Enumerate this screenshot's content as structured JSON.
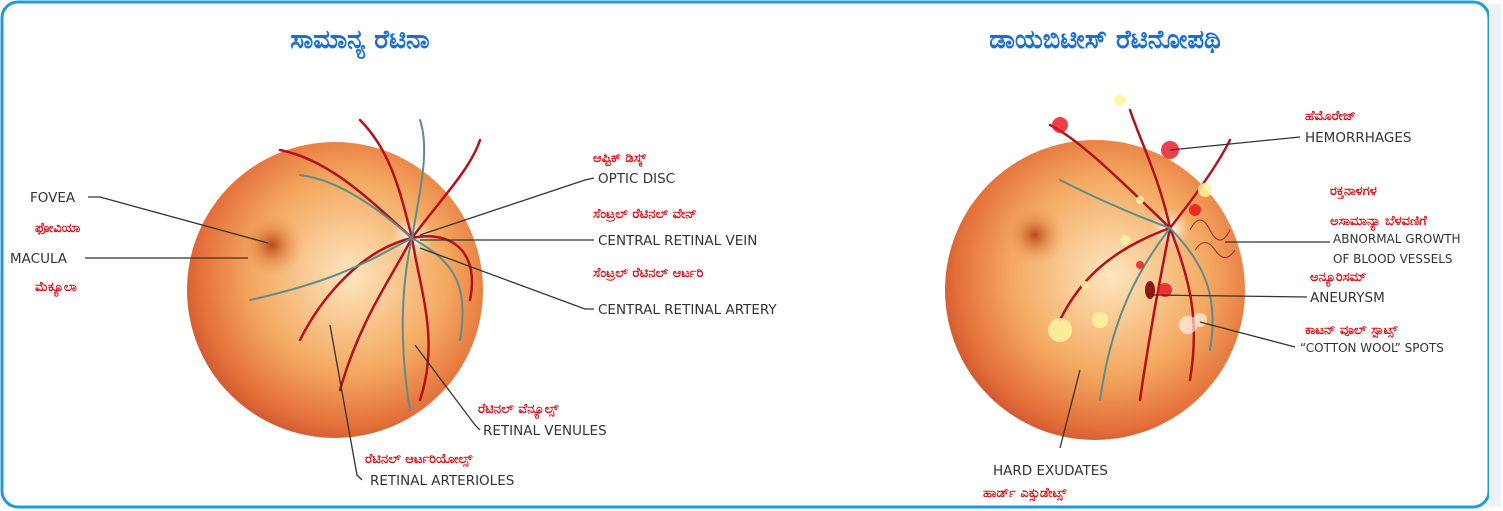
{
  "normal": {
    "title": "ಸಾಮಾನ್ಯ ರೆಟಿನಾ",
    "labels": [
      {
        "english": "FOVEA",
        "kannada": "ಫೋವಿಯಾ"
      },
      {
        "english": "MACULA",
        "kannada": "ಮೆಕ್ಯೂಲಾ"
      },
      {
        "english": "OPTIC DISC",
        "kannada": "ಆಪ್ಟಿಕ್ ಡಿಸ್ಕ್"
      },
      {
        "english": "CENTRAL RETINAL VEIN",
        "kannada": "ಸೆಂಟ್ರಲ್ ರೆಟಿನಲ್ ವೇನ್"
      },
      {
        "english": "CENTRAL RETINAL ARTERY",
        "kannada": "ಸೆಂಟ್ರಲ್ ರೆಟಿನಲ್ ಆರ್ಟರಿ"
      },
      {
        "english": "RETINAL VENULES",
        "kannada": "ರೆಟಿನಲ್ ವೆನ್ಯೂಲ್ಸ್"
      },
      {
        "english": "RETINAL ARTERIOLES",
        "kannada": "ರೆಟಿನಲ್ ಆರ್ಟರಿಯೋಲ್ಸ್"
      }
    ]
  },
  "diabetic": {
    "title": "ಡಾಯಬಿಟೀಸ್ ರೆಟಿನೋಪಥಿ",
    "labels": [
      {
        "english": "HEMORRHAGES",
        "kannada": "ಹೆಮೊರೇಜ್"
      },
      {
        "english": [
          "ABNORMAL GROWTH",
          "OF BLOOD VESSELS"
        ],
        "kannada": [
          "ರಕ್ತನಾಳಗಳ",
          "ಅಸಾಮಾನ್ಯಾ ಬೆಳವಣಿಗೆ"
        ]
      },
      {
        "english": "ANEURYSM",
        "kannada": "ಅನ್ಯೂರಿಸಮ್"
      },
      {
        "english": "“COTTON WOOL” SPOTS",
        "kannada": "ಕಾಟನ್ ವೂಲ್ ಸ್ಪಾಟ್ಸ್"
      },
      {
        "english": "HARD EXUDATES",
        "kannada": "ಹಾರ್ಡ್ ಎಕ್ಸುಡೇಟ್ಸ್"
      }
    ]
  }
}
